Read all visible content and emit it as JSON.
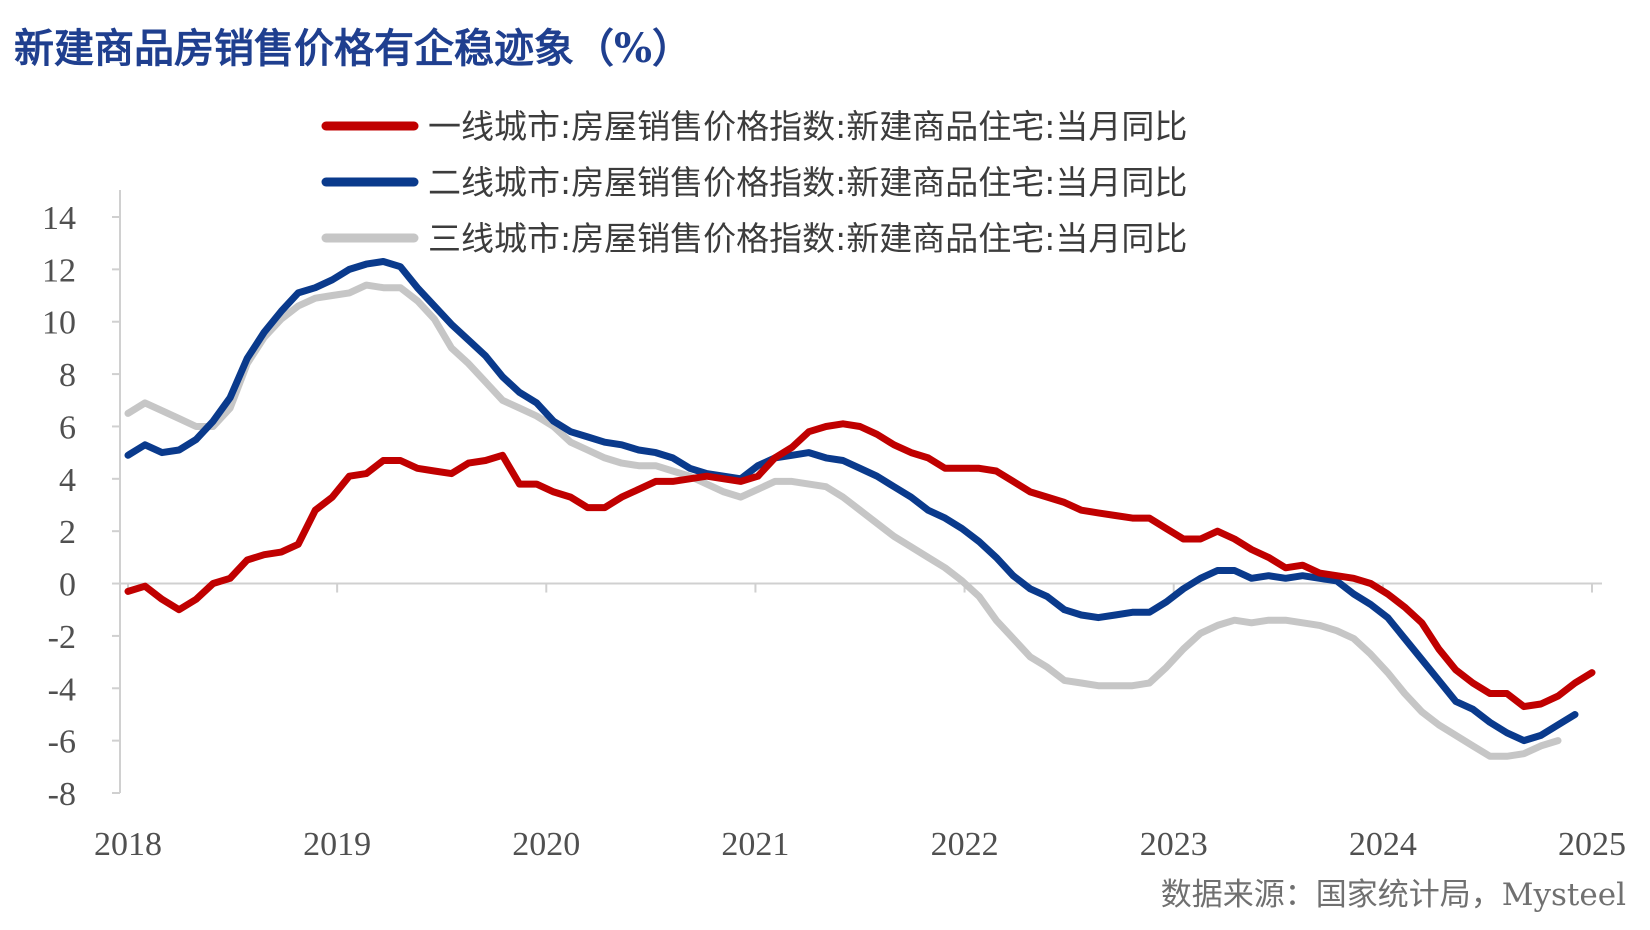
{
  "title": "新建商品房销售价格有企稳迹象（%）",
  "source": "数据来源：国家统计局，Mysteel",
  "chart_data": {
    "type": "line",
    "ylim": [
      -8,
      14
    ],
    "yticks": [
      "14",
      "12",
      "10",
      "8",
      "6",
      "4",
      "2",
      "0",
      "-2",
      "-4",
      "-6",
      "-8"
    ],
    "xticks": [
      "2018",
      "2019",
      "2020",
      "2021",
      "2022",
      "2023",
      "2024",
      "2025"
    ],
    "grid": false,
    "legend_position": "top",
    "series": [
      {
        "name": "一线城市:房屋销售价格指数:新建商品住宅:当月同比",
        "color": "#c00000",
        "values": [
          -0.3,
          -0.1,
          -0.6,
          -1.0,
          -0.6,
          0.0,
          0.2,
          0.9,
          1.1,
          1.2,
          1.5,
          2.8,
          3.3,
          4.1,
          4.2,
          4.7,
          4.7,
          4.4,
          4.3,
          4.2,
          4.6,
          4.7,
          4.9,
          3.8,
          3.8,
          3.5,
          3.3,
          2.9,
          2.9,
          3.3,
          3.6,
          3.9,
          3.9,
          4.0,
          4.1,
          4.0,
          3.9,
          4.1,
          4.8,
          5.2,
          5.8,
          6.0,
          6.1,
          6.0,
          5.7,
          5.3,
          5.0,
          4.8,
          4.4,
          4.4,
          4.4,
          4.3,
          3.9,
          3.5,
          3.3,
          3.1,
          2.8,
          2.7,
          2.6,
          2.5,
          2.5,
          2.1,
          1.7,
          1.7,
          2.0,
          1.7,
          1.3,
          1.0,
          0.6,
          0.7,
          0.4,
          0.3,
          0.2,
          0.0,
          -0.4,
          -0.9,
          -1.5,
          -2.5,
          -3.3,
          -3.8,
          -4.2,
          -4.2,
          -4.7,
          -4.6,
          -4.3,
          -3.8,
          -3.4
        ]
      },
      {
        "name": "二线城市:房屋销售价格指数:新建商品住宅:当月同比",
        "color": "#0a3a8c",
        "values": [
          4.9,
          5.3,
          5.0,
          5.1,
          5.5,
          6.2,
          7.1,
          8.6,
          9.6,
          10.4,
          11.1,
          11.3,
          11.6,
          12.0,
          12.2,
          12.3,
          12.1,
          11.3,
          10.6,
          9.9,
          9.3,
          8.7,
          7.9,
          7.3,
          6.9,
          6.2,
          5.8,
          5.6,
          5.4,
          5.3,
          5.1,
          5.0,
          4.8,
          4.4,
          4.2,
          4.1,
          4.0,
          4.5,
          4.8,
          4.9,
          5.0,
          4.8,
          4.7,
          4.4,
          4.1,
          3.7,
          3.3,
          2.8,
          2.5,
          2.1,
          1.6,
          1.0,
          0.3,
          -0.2,
          -0.5,
          -1.0,
          -1.2,
          -1.3,
          -1.2,
          -1.1,
          -1.1,
          -0.7,
          -0.2,
          0.2,
          0.5,
          0.5,
          0.2,
          0.3,
          0.2,
          0.3,
          0.2,
          0.1,
          -0.4,
          -0.8,
          -1.3,
          -2.1,
          -2.9,
          -3.7,
          -4.5,
          -4.8,
          -5.3,
          -5.7,
          -6.0,
          -5.8,
          -5.4,
          -5.0
        ]
      },
      {
        "name": "三线城市:房屋销售价格指数:新建商品住宅:当月同比",
        "color": "#c6c6c6",
        "values": [
          6.5,
          6.9,
          6.6,
          6.3,
          6.0,
          6.0,
          6.7,
          8.4,
          9.4,
          10.1,
          10.6,
          10.9,
          11.0,
          11.1,
          11.4,
          11.3,
          11.3,
          10.8,
          10.1,
          9.0,
          8.4,
          7.7,
          7.0,
          6.7,
          6.4,
          6.0,
          5.4,
          5.1,
          4.8,
          4.6,
          4.5,
          4.5,
          4.3,
          4.1,
          3.8,
          3.5,
          3.3,
          3.6,
          3.9,
          3.9,
          3.8,
          3.7,
          3.3,
          2.8,
          2.3,
          1.8,
          1.4,
          1.0,
          0.6,
          0.1,
          -0.5,
          -1.4,
          -2.1,
          -2.8,
          -3.2,
          -3.7,
          -3.8,
          -3.9,
          -3.9,
          -3.9,
          -3.8,
          -3.2,
          -2.5,
          -1.9,
          -1.6,
          -1.4,
          -1.5,
          -1.4,
          -1.4,
          -1.5,
          -1.6,
          -1.8,
          -2.1,
          -2.7,
          -3.4,
          -4.2,
          -4.9,
          -5.4,
          -5.8,
          -6.2,
          -6.6,
          -6.6,
          -6.5,
          -6.2,
          -6.0
        ]
      }
    ]
  }
}
